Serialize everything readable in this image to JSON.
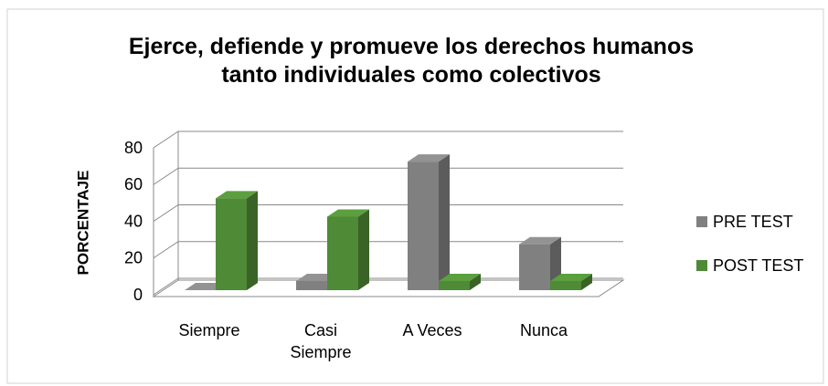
{
  "chart_data": {
    "type": "bar3d",
    "title": "Ejerce, defiende y promueve los derechos humanos tanto individuales como colectivos",
    "y_label": "PORCENTAJE",
    "categories": [
      "Siempre",
      "Casi Siempre",
      "A Veces",
      "Nunca"
    ],
    "series": [
      {
        "name": "PRE TEST",
        "color": "#808080",
        "values": [
          0,
          5,
          70,
          25
        ]
      },
      {
        "name": "POST TEST",
        "color": "#4f8a36",
        "values": [
          50,
          40,
          5,
          5
        ]
      }
    ],
    "ylim": [
      0,
      80
    ],
    "yticks": [
      0,
      20,
      40,
      60,
      80
    ],
    "grid": true,
    "legend": "right"
  }
}
